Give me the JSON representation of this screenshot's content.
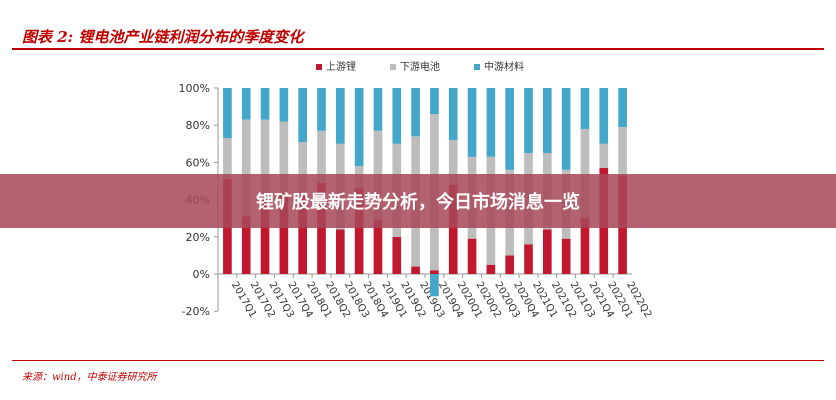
{
  "figure": {
    "title": "图表 2:  锂电池产业链利润分布的季度变化",
    "source": "来源：wind，中泰证券研究所"
  },
  "banner": {
    "text": "锂矿股最新走势分析，今日市场消息一览"
  },
  "colors": {
    "accent": "#c00000",
    "upstream": "#c0182e",
    "downstream": "#bdbdbd",
    "midstream": "#44a7c9"
  },
  "chart_data": {
    "type": "bar",
    "stacked": true,
    "categories": [
      "2017Q1",
      "2017Q2",
      "2017Q3",
      "2017Q4",
      "2018Q1",
      "2018Q2",
      "2018Q3",
      "2018Q4",
      "2019Q1",
      "2019Q2",
      "2019Q3",
      "2019Q4",
      "2020Q1",
      "2020Q2",
      "2020Q3",
      "2020Q4",
      "2021Q1",
      "2021Q2",
      "2021Q3",
      "2021Q4",
      "2022Q1",
      "2022Q2"
    ],
    "series": [
      {
        "name": "上游锂",
        "color": "#c0182e",
        "values": [
          51,
          31,
          40,
          43,
          42,
          49,
          24,
          46,
          29,
          20,
          4,
          2,
          48,
          19,
          5,
          10,
          16,
          24,
          19,
          30,
          57,
          53
        ]
      },
      {
        "name": "下游电池",
        "color": "#bdbdbd",
        "values": [
          22,
          52,
          43,
          39,
          29,
          28,
          46,
          12,
          48,
          50,
          70,
          84,
          24,
          44,
          58,
          46,
          49,
          41,
          37,
          48,
          13,
          26
        ]
      },
      {
        "name": "中游材料",
        "color": "#44a7c9",
        "values": [
          27,
          17,
          17,
          18,
          29,
          23,
          30,
          42,
          23,
          30,
          26,
          14,
          28,
          37,
          37,
          44,
          35,
          35,
          44,
          22,
          30,
          21
        ]
      }
    ],
    "negative_values": {
      "2019Q4": -12
    },
    "y_ticks": [
      "-20%",
      "0%",
      "20%",
      "40%",
      "60%",
      "80%",
      "100%"
    ],
    "ylim": [
      -20,
      100
    ],
    "legend_position": "top",
    "grid": false
  }
}
